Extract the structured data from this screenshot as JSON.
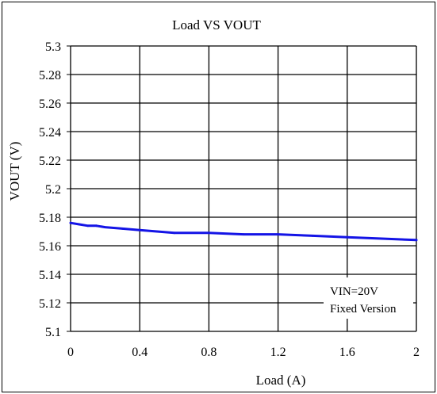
{
  "chart_data": {
    "type": "line",
    "title": "Load VS  VOUT",
    "xlabel": "Load (A)",
    "ylabel": "VOUT (V)",
    "xlim": [
      0,
      2
    ],
    "ylim": [
      5.1,
      5.3
    ],
    "x_ticks": [
      0,
      0.4,
      0.8,
      1.2,
      1.6,
      2
    ],
    "x_tick_labels": [
      "0",
      "0.4",
      "0.8",
      "1.2",
      "1.6",
      "2"
    ],
    "y_ticks": [
      5.1,
      5.12,
      5.14,
      5.16,
      5.18,
      5.2,
      5.22,
      5.24,
      5.26,
      5.28,
      5.3
    ],
    "y_tick_labels": [
      "5.1",
      "5.12",
      "5.14",
      "5.16",
      "5.18",
      "5.2",
      "5.22",
      "5.24",
      "5.26",
      "5.28",
      "5.3"
    ],
    "grid": true,
    "annotation": [
      "VIN=20V",
      "Fixed Version"
    ],
    "series": [
      {
        "color": "#1414e6",
        "x": [
          0,
          0.05,
          0.1,
          0.15,
          0.2,
          0.3,
          0.4,
          0.5,
          0.6,
          0.8,
          1.0,
          1.2,
          1.4,
          1.6,
          1.8,
          2.0
        ],
        "y": [
          5.176,
          5.175,
          5.174,
          5.174,
          5.173,
          5.172,
          5.171,
          5.17,
          5.169,
          5.169,
          5.168,
          5.168,
          5.167,
          5.166,
          5.165,
          5.164
        ]
      }
    ]
  }
}
